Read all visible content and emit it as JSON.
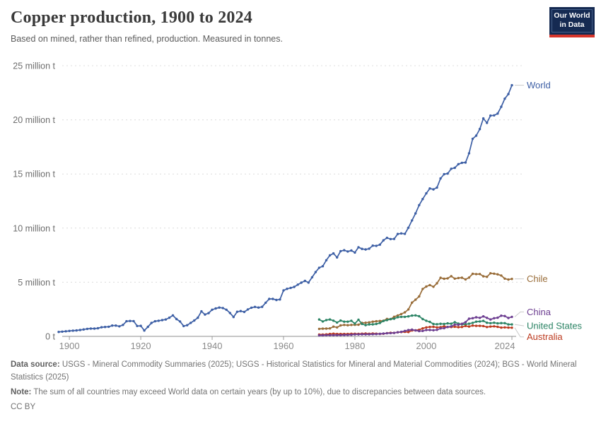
{
  "header": {
    "title": "Copper production, 1900 to 2024",
    "subtitle": "Based on mined, rather than refined, production. Measured in tonnes."
  },
  "logo": {
    "line1": "Our World",
    "line2": "in Data",
    "bg_color": "#152a52",
    "bar_color": "#d6352b"
  },
  "chart_data": {
    "type": "line",
    "title": "Copper production, 1900 to 2024",
    "unit": "million tonnes",
    "xlabel": "",
    "ylabel": "",
    "grid": true,
    "legend_position": "right-end-labels",
    "x_range": [
      1897,
      2024
    ],
    "ylim": [
      0,
      25
    ],
    "x_axis": {
      "ticks": [
        1900,
        1920,
        1940,
        1960,
        1980,
        2000,
        2024
      ]
    },
    "y_axis": {
      "ticks": [
        {
          "value": 0,
          "label": "0 t"
        },
        {
          "value": 5,
          "label": "5 million t"
        },
        {
          "value": 10,
          "label": "10 million t"
        },
        {
          "value": 15,
          "label": "15 million t"
        },
        {
          "value": 20,
          "label": "20 million t"
        },
        {
          "value": 25,
          "label": "25 million t"
        }
      ]
    },
    "series": [
      {
        "name": "World",
        "color": "#3d5fa5",
        "start_year": 1897,
        "label_dy": 0,
        "values": [
          0.41,
          0.44,
          0.47,
          0.5,
          0.53,
          0.55,
          0.59,
          0.64,
          0.69,
          0.72,
          0.72,
          0.75,
          0.84,
          0.87,
          0.89,
          1.0,
          1.0,
          0.93,
          1.06,
          1.4,
          1.42,
          1.41,
          0.96,
          0.97,
          0.54,
          0.88,
          1.24,
          1.4,
          1.44,
          1.5,
          1.56,
          1.72,
          1.94,
          1.6,
          1.38,
          0.95,
          1.03,
          1.25,
          1.47,
          1.72,
          2.31,
          2.02,
          2.15,
          2.46,
          2.58,
          2.66,
          2.62,
          2.46,
          2.16,
          1.79,
          2.27,
          2.34,
          2.26,
          2.49,
          2.65,
          2.72,
          2.66,
          2.73,
          3.11,
          3.46,
          3.46,
          3.36,
          3.41,
          4.24,
          4.39,
          4.48,
          4.57,
          4.78,
          4.96,
          5.13,
          4.97,
          5.46,
          5.94,
          6.34,
          6.48,
          7.03,
          7.49,
          7.66,
          7.29,
          7.87,
          7.96,
          7.84,
          7.93,
          7.74,
          8.23,
          8.08,
          8.03,
          8.1,
          8.38,
          8.36,
          8.47,
          8.87,
          9.1,
          8.99,
          9.0,
          9.46,
          9.51,
          9.47,
          10.03,
          10.71,
          11.36,
          12.12,
          12.68,
          13.21,
          13.66,
          13.58,
          13.75,
          14.59,
          14.98,
          15.04,
          15.48,
          15.57,
          15.91,
          16.03,
          16.06,
          16.91,
          18.25,
          18.54,
          19.15,
          20.13,
          19.72,
          20.39,
          20.41,
          20.58,
          21.21,
          21.95,
          22.38,
          23.2
        ]
      },
      {
        "name": "Chile",
        "color": "#996d39",
        "start_year": 1970,
        "label_dy": 0,
        "values": [
          0.69,
          0.71,
          0.72,
          0.74,
          0.9,
          0.83,
          1.01,
          1.06,
          1.03,
          1.06,
          1.07,
          1.08,
          1.24,
          1.26,
          1.29,
          1.36,
          1.4,
          1.42,
          1.45,
          1.61,
          1.59,
          1.81,
          1.93,
          2.06,
          2.22,
          2.49,
          3.12,
          3.39,
          3.69,
          4.38,
          4.6,
          4.74,
          4.58,
          4.9,
          5.41,
          5.32,
          5.36,
          5.56,
          5.33,
          5.39,
          5.42,
          5.26,
          5.43,
          5.78,
          5.75,
          5.76,
          5.55,
          5.5,
          5.83,
          5.79,
          5.73,
          5.62,
          5.33,
          5.25,
          5.31
        ]
      },
      {
        "name": "United States",
        "color": "#2c8465",
        "start_year": 1970,
        "label_dy": 2,
        "values": [
          1.56,
          1.38,
          1.51,
          1.56,
          1.45,
          1.28,
          1.46,
          1.36,
          1.36,
          1.44,
          1.18,
          1.54,
          1.15,
          1.04,
          1.1,
          1.11,
          1.15,
          1.24,
          1.42,
          1.5,
          1.59,
          1.63,
          1.77,
          1.8,
          1.8,
          1.85,
          1.92,
          1.94,
          1.86,
          1.6,
          1.44,
          1.34,
          1.14,
          1.12,
          1.16,
          1.14,
          1.2,
          1.17,
          1.31,
          1.18,
          1.11,
          1.11,
          1.17,
          1.25,
          1.36,
          1.38,
          1.43,
          1.26,
          1.22,
          1.26,
          1.2,
          1.23,
          1.22,
          1.1,
          1.1
        ]
      },
      {
        "name": "Australia",
        "color": "#bc3a1f",
        "start_year": 1970,
        "label_dy": 13,
        "values": [
          0.16,
          0.17,
          0.18,
          0.22,
          0.25,
          0.22,
          0.22,
          0.22,
          0.22,
          0.24,
          0.24,
          0.23,
          0.25,
          0.26,
          0.24,
          0.26,
          0.25,
          0.23,
          0.24,
          0.3,
          0.33,
          0.32,
          0.38,
          0.4,
          0.42,
          0.4,
          0.55,
          0.56,
          0.61,
          0.74,
          0.83,
          0.87,
          0.88,
          0.83,
          0.85,
          0.93,
          0.86,
          0.86,
          0.89,
          0.85,
          0.87,
          0.96,
          0.91,
          1.0,
          0.97,
          0.97,
          0.95,
          0.86,
          0.91,
          0.93,
          0.88,
          0.81,
          0.83,
          0.81,
          0.8
        ]
      },
      {
        "name": "China",
        "color": "#6d3e91",
        "start_year": 1970,
        "label_dy": -7,
        "values": [
          0.1,
          0.1,
          0.11,
          0.11,
          0.11,
          0.12,
          0.12,
          0.13,
          0.14,
          0.15,
          0.18,
          0.18,
          0.19,
          0.19,
          0.19,
          0.2,
          0.21,
          0.23,
          0.26,
          0.29,
          0.3,
          0.32,
          0.38,
          0.42,
          0.5,
          0.58,
          0.62,
          0.55,
          0.49,
          0.5,
          0.59,
          0.59,
          0.57,
          0.6,
          0.74,
          0.76,
          0.87,
          0.93,
          1.09,
          1.07,
          1.16,
          1.31,
          1.63,
          1.68,
          1.76,
          1.71,
          1.85,
          1.71,
          1.56,
          1.68,
          1.72,
          1.91,
          1.88,
          1.7,
          1.8
        ]
      }
    ]
  },
  "footer": {
    "source_label": "Data source:",
    "source_text": " USGS - Mineral Commodity Summaries (2025); USGS - Historical Statistics for Mineral and Material Commodities (2024); BGS - World Mineral Statistics (2025)",
    "note_label": "Note:",
    "note_text": " The sum of all countries may exceed World data on certain years (by up to 10%), due to discrepancies between data sources.",
    "license": "CC BY"
  }
}
